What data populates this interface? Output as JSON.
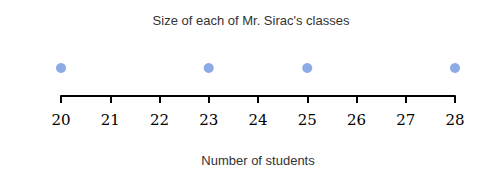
{
  "chart_data": {
    "type": "dot",
    "title": "Size of each of Mr. Sirac's classes",
    "x_label": "Number of students",
    "x": [
      20,
      23,
      25,
      28
    ],
    "values": [
      1,
      1,
      1,
      1
    ],
    "color": "#6f95e0",
    "xlim": [
      20,
      28
    ],
    "xticks": [
      20,
      21,
      22,
      23,
      24,
      25,
      26,
      27,
      28
    ],
    "tick_labels": "x",
    "grid": false
  }
}
